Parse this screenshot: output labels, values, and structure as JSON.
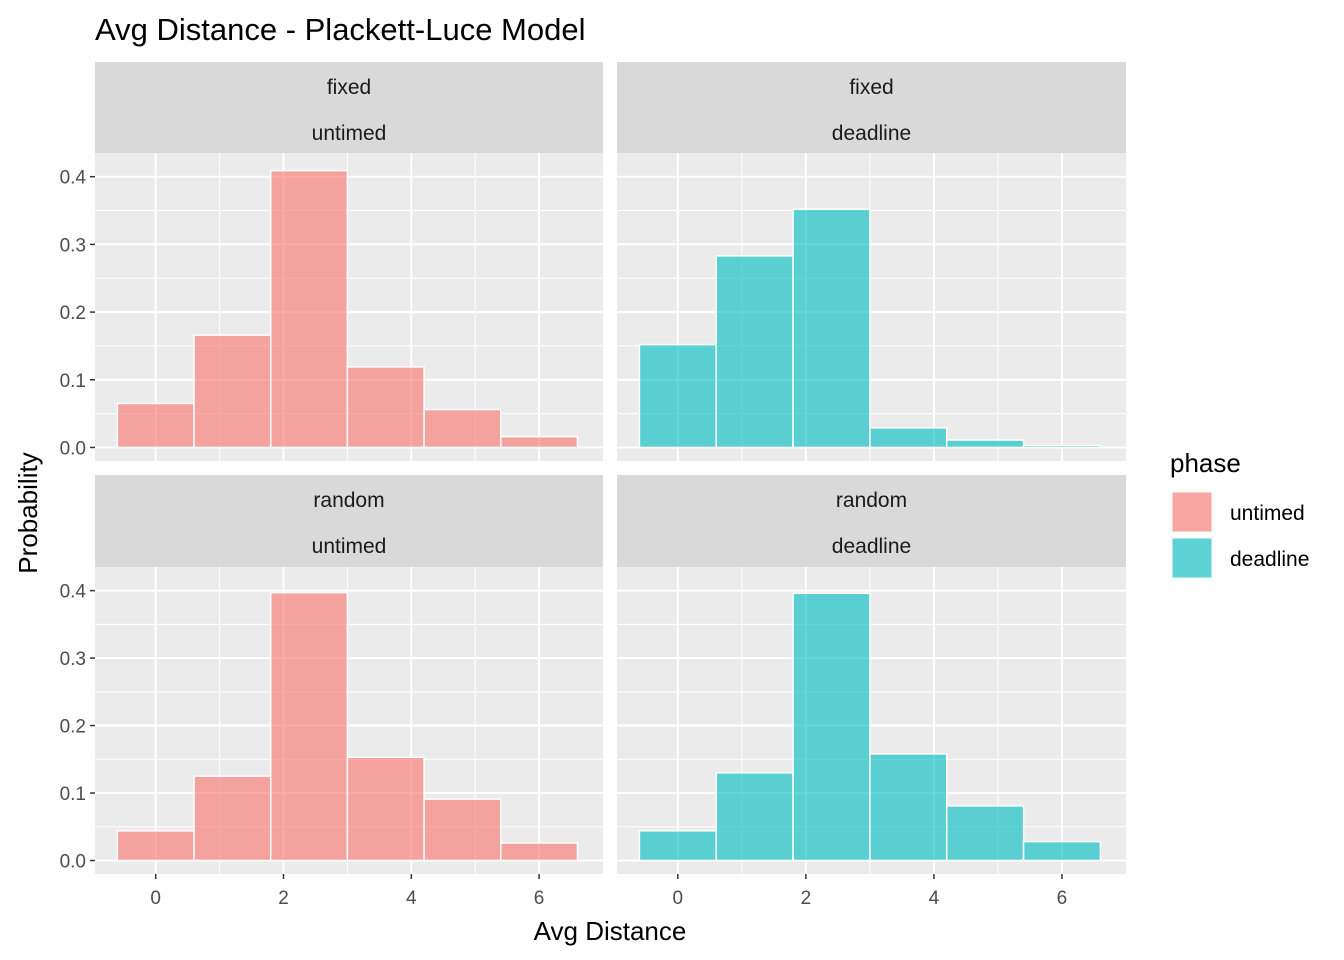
{
  "chart_data": {
    "type": "bar",
    "title": "Avg Distance - Plackett-Luce Model",
    "xlabel": "Avg Distance",
    "ylabel": "Probability",
    "xlim": [
      -0.95,
      7.0
    ],
    "ylim": [
      -0.02,
      0.435
    ],
    "x_ticks": [
      0,
      2,
      4,
      6
    ],
    "x_tick_labels": [
      "0",
      "2",
      "4",
      "6"
    ],
    "y_ticks": [
      0.0,
      0.1,
      0.2,
      0.3,
      0.4
    ],
    "y_tick_labels": [
      "0.0",
      "0.1",
      "0.2",
      "0.3",
      "0.4"
    ],
    "bin_edges": [
      -0.6,
      0.6,
      1.8,
      3.0,
      4.2,
      5.4,
      6.6
    ],
    "grid": true,
    "legend": {
      "title": "phase",
      "position": "right",
      "items": [
        {
          "label": "untimed",
          "color": "#F8766D"
        },
        {
          "label": "deadline",
          "color": "#00BFC4"
        }
      ]
    },
    "panels": [
      {
        "strip_top": "fixed",
        "strip_bottom": "untimed",
        "phase": "untimed",
        "row": 0,
        "col": 0,
        "values": [
          0.065,
          0.166,
          0.409,
          0.119,
          0.056,
          0.016
        ]
      },
      {
        "strip_top": "fixed",
        "strip_bottom": "deadline",
        "phase": "deadline",
        "row": 0,
        "col": 1,
        "values": [
          0.152,
          0.283,
          0.352,
          0.029,
          0.011,
          0.003
        ]
      },
      {
        "strip_top": "random",
        "strip_bottom": "untimed",
        "phase": "untimed",
        "row": 1,
        "col": 0,
        "values": [
          0.044,
          0.125,
          0.397,
          0.153,
          0.091,
          0.026
        ]
      },
      {
        "strip_top": "random",
        "strip_bottom": "deadline",
        "phase": "deadline",
        "row": 1,
        "col": 1,
        "values": [
          0.044,
          0.13,
          0.396,
          0.158,
          0.081,
          0.028
        ]
      }
    ]
  }
}
